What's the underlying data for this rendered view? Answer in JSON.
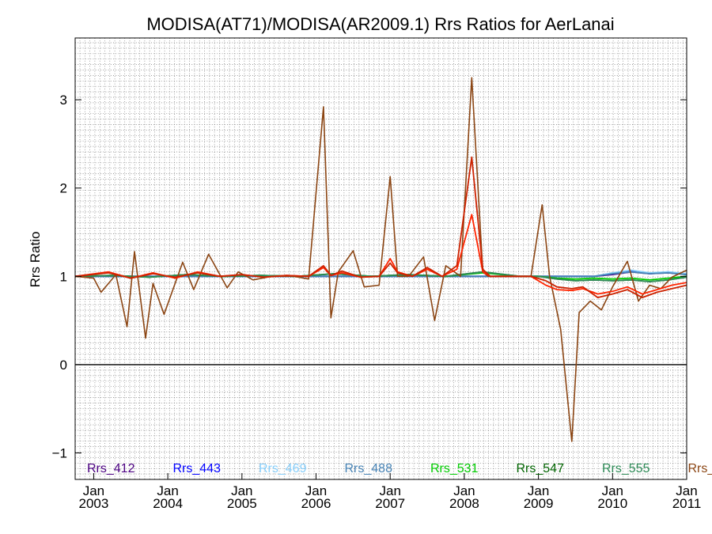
{
  "chart_data": {
    "type": "line",
    "title": "MODISA(AT71)/MODISA(AR2009.1)  Rrs Ratios for AerLanai",
    "ylabel": "Rrs Ratio",
    "xlabel": "",
    "xlim": [
      2002.75,
      2011.0
    ],
    "ylim": [
      -1.3,
      3.7
    ],
    "grid": true,
    "legend_position": "bottom",
    "reference_line": 0,
    "y_ticks": [
      {
        "value": -1,
        "label": "−1"
      },
      {
        "value": 0,
        "label": "0"
      },
      {
        "value": 1,
        "label": "1"
      },
      {
        "value": 2,
        "label": "2"
      },
      {
        "value": 3,
        "label": "3"
      }
    ],
    "x_ticks": [
      {
        "value": 2003,
        "month": "Jan",
        "year": "2003"
      },
      {
        "value": 2004,
        "month": "Jan",
        "year": "2004"
      },
      {
        "value": 2005,
        "month": "Jan",
        "year": "2005"
      },
      {
        "value": 2006,
        "month": "Jan",
        "year": "2006"
      },
      {
        "value": 2007,
        "month": "Jan",
        "year": "2007"
      },
      {
        "value": 2008,
        "month": "Jan",
        "year": "2008"
      },
      {
        "value": 2009,
        "month": "Jan",
        "year": "2009"
      },
      {
        "value": 2010,
        "month": "Jan",
        "year": "2010"
      },
      {
        "value": 2011,
        "month": "Jan",
        "year": "2011"
      }
    ],
    "series": [
      {
        "name": "Rrs_412",
        "color": "#4b0082",
        "x": [
          2002.75,
          2003.25,
          2003.75,
          2004.25,
          2004.75,
          2005.25,
          2005.75,
          2006.25,
          2006.75,
          2007.25,
          2007.75,
          2008.25,
          2008.75,
          2009.0,
          2009.25,
          2009.5,
          2009.75,
          2010.0,
          2010.25,
          2010.5,
          2010.75,
          2011.0
        ],
        "y": [
          1.0,
          1.0,
          1.0,
          1.0,
          1.0,
          1.0,
          1.0,
          1.0,
          1.0,
          1.0,
          1.0,
          1.0,
          1.0,
          1.0,
          1.0,
          1.0,
          1.0,
          1.02,
          1.05,
          1.03,
          1.04,
          1.02
        ]
      },
      {
        "name": "Rrs_443",
        "color": "#0000ff",
        "x": [
          2002.75,
          2003.25,
          2003.75,
          2004.25,
          2004.75,
          2005.25,
          2005.75,
          2006.25,
          2006.75,
          2007.25,
          2007.75,
          2008.25,
          2008.75,
          2009.0,
          2009.25,
          2009.5,
          2009.75,
          2010.0,
          2010.25,
          2010.5,
          2010.75,
          2011.0
        ],
        "y": [
          1.0,
          1.0,
          1.0,
          1.0,
          1.0,
          1.0,
          1.0,
          1.0,
          1.0,
          1.0,
          1.0,
          1.0,
          1.0,
          1.0,
          1.0,
          1.0,
          1.0,
          1.03,
          1.06,
          1.03,
          1.05,
          1.02
        ]
      },
      {
        "name": "Rrs_469",
        "color": "#87cefa",
        "x": [
          2002.75,
          2003.25,
          2003.75,
          2004.25,
          2004.75,
          2005.25,
          2005.75,
          2006.25,
          2006.75,
          2007.25,
          2007.75,
          2008.25,
          2008.75,
          2009.0,
          2009.25,
          2009.5,
          2009.75,
          2010.0,
          2010.25,
          2010.5,
          2010.75,
          2011.0
        ],
        "y": [
          1.0,
          1.0,
          1.0,
          1.0,
          1.0,
          1.0,
          1.0,
          1.0,
          1.0,
          1.0,
          1.0,
          1.0,
          1.0,
          1.0,
          1.0,
          1.0,
          1.0,
          1.04,
          1.07,
          1.04,
          1.05,
          1.03
        ]
      },
      {
        "name": "Rrs_488",
        "color": "#4682b4",
        "x": [
          2002.75,
          2003.25,
          2003.75,
          2004.25,
          2004.75,
          2005.25,
          2005.75,
          2006.25,
          2006.75,
          2007.25,
          2007.75,
          2008.25,
          2008.75,
          2009.0,
          2009.25,
          2009.5,
          2009.75,
          2010.0,
          2010.25,
          2010.5,
          2010.75,
          2011.0
        ],
        "y": [
          1.0,
          1.0,
          1.0,
          1.0,
          1.0,
          1.0,
          1.0,
          1.0,
          1.0,
          1.0,
          1.0,
          1.0,
          1.0,
          1.0,
          1.0,
          1.0,
          1.0,
          1.03,
          1.05,
          1.03,
          1.04,
          1.02
        ]
      },
      {
        "name": "Rrs_531",
        "color": "#00cc00",
        "x": [
          2002.75,
          2003.25,
          2003.75,
          2004.25,
          2004.75,
          2005.25,
          2005.75,
          2006.25,
          2006.75,
          2007.25,
          2007.75,
          2008.25,
          2008.75,
          2009.0,
          2009.25,
          2009.5,
          2009.75,
          2010.0,
          2010.25,
          2010.5,
          2010.75,
          2011.0
        ],
        "y": [
          1.0,
          1.01,
          0.99,
          1.02,
          1.0,
          1.01,
          1.0,
          1.03,
          1.0,
          1.02,
          1.0,
          1.04,
          1.0,
          1.0,
          0.98,
          0.97,
          0.98,
          0.97,
          0.98,
          0.96,
          0.98,
          1.0
        ]
      },
      {
        "name": "Rrs_547",
        "color": "#006400",
        "x": [
          2002.75,
          2003.25,
          2003.75,
          2004.25,
          2004.75,
          2005.25,
          2005.75,
          2006.25,
          2006.75,
          2007.25,
          2007.75,
          2008.25,
          2008.75,
          2009.0,
          2009.25,
          2009.5,
          2009.75,
          2010.0,
          2010.25,
          2010.5,
          2010.75,
          2011.0
        ],
        "y": [
          1.0,
          1.01,
          0.99,
          1.02,
          1.0,
          1.01,
          1.0,
          1.03,
          1.0,
          1.02,
          1.0,
          1.05,
          1.0,
          1.0,
          0.97,
          0.95,
          0.96,
          0.95,
          0.96,
          0.94,
          0.96,
          0.99
        ]
      },
      {
        "name": "Rrs_555",
        "color": "#2e8b57",
        "x": [
          2002.75,
          2003.25,
          2003.75,
          2004.25,
          2004.75,
          2005.25,
          2005.75,
          2006.25,
          2006.75,
          2007.25,
          2007.75,
          2008.25,
          2008.75,
          2009.0,
          2009.25,
          2009.5,
          2009.75,
          2010.0,
          2010.25,
          2010.5,
          2010.75,
          2011.0
        ],
        "y": [
          1.0,
          1.01,
          0.99,
          1.02,
          1.0,
          1.01,
          1.0,
          1.03,
          1.0,
          1.02,
          1.0,
          1.05,
          1.0,
          1.0,
          0.97,
          0.95,
          0.96,
          0.95,
          0.96,
          0.94,
          0.96,
          0.99
        ]
      },
      {
        "name": "Rrs_",
        "color": "#8b4513",
        "x": [
          2002.75,
          2003.0,
          2003.1,
          2003.3,
          2003.45,
          2003.55,
          2003.7,
          2003.8,
          2003.95,
          2004.2,
          2004.35,
          2004.55,
          2004.8,
          2004.95,
          2005.15,
          2005.4,
          2005.7,
          2005.9,
          2006.1,
          2006.2,
          2006.3,
          2006.5,
          2006.65,
          2006.85,
          2007.0,
          2007.1,
          2007.25,
          2007.45,
          2007.6,
          2007.75,
          2007.95,
          2008.1,
          2008.25,
          2008.32,
          2008.4,
          2008.6,
          2008.9,
          2009.05,
          2009.15,
          2009.3,
          2009.45,
          2009.55,
          2009.7,
          2009.85,
          2010.0,
          2010.2,
          2010.35,
          2010.5,
          2010.65,
          2010.8,
          2011.0
        ],
        "y": [
          1.0,
          0.98,
          0.82,
          1.02,
          0.43,
          1.28,
          0.3,
          0.92,
          0.57,
          1.16,
          0.85,
          1.25,
          0.87,
          1.05,
          0.96,
          1.0,
          1.0,
          0.97,
          2.92,
          0.53,
          1.05,
          1.29,
          0.88,
          0.9,
          2.13,
          1.0,
          1.0,
          1.22,
          0.5,
          1.12,
          1.0,
          3.25,
          1.05,
          1.0,
          1.0,
          1.0,
          1.0,
          1.81,
          1.0,
          0.4,
          -0.87,
          0.59,
          0.72,
          0.62,
          0.88,
          1.17,
          0.72,
          0.9,
          0.86,
          0.99,
          1.07
        ]
      },
      {
        "name": "",
        "color": "#ff2400",
        "x": [
          2002.75,
          2003.2,
          2003.5,
          2003.8,
          2004.1,
          2004.4,
          2004.7,
          2005.0,
          2005.3,
          2005.6,
          2005.9,
          2006.1,
          2006.2,
          2006.35,
          2006.6,
          2006.85,
          2007.0,
          2007.1,
          2007.3,
          2007.5,
          2007.7,
          2007.9,
          2008.1,
          2008.25,
          2008.35,
          2008.6,
          2008.9,
          2009.1,
          2009.25,
          2009.45,
          2009.6,
          2009.8,
          2010.0,
          2010.2,
          2010.4,
          2010.6,
          2010.8,
          2011.0
        ],
        "y": [
          1.0,
          1.05,
          0.98,
          1.04,
          0.98,
          1.05,
          1.0,
          1.02,
          0.99,
          1.01,
          1.0,
          1.1,
          1.01,
          1.04,
          0.99,
          1.0,
          1.2,
          1.05,
          1.0,
          1.08,
          1.0,
          1.08,
          1.7,
          1.05,
          1.0,
          1.0,
          1.0,
          0.9,
          0.85,
          0.84,
          0.86,
          0.8,
          0.83,
          0.88,
          0.8,
          0.85,
          0.9,
          0.93
        ]
      },
      {
        "name": "",
        "color": "#cc2200",
        "x": [
          2002.75,
          2003.2,
          2003.5,
          2003.8,
          2004.1,
          2004.4,
          2004.7,
          2005.0,
          2005.3,
          2005.6,
          2005.9,
          2006.1,
          2006.2,
          2006.35,
          2006.6,
          2006.85,
          2007.0,
          2007.1,
          2007.3,
          2007.5,
          2007.7,
          2007.9,
          2008.1,
          2008.25,
          2008.35,
          2008.6,
          2008.9,
          2009.1,
          2009.25,
          2009.45,
          2009.6,
          2009.8,
          2010.0,
          2010.2,
          2010.4,
          2010.6,
          2010.8,
          2011.0
        ],
        "y": [
          1.0,
          1.04,
          0.98,
          1.03,
          0.99,
          1.04,
          1.0,
          1.02,
          0.99,
          1.01,
          1.0,
          1.12,
          1.01,
          1.06,
          0.99,
          1.0,
          1.15,
          1.04,
          1.0,
          1.1,
          1.0,
          1.12,
          2.35,
          1.08,
          1.0,
          1.0,
          1.0,
          0.95,
          0.88,
          0.86,
          0.88,
          0.76,
          0.8,
          0.85,
          0.76,
          0.82,
          0.86,
          0.9
        ]
      }
    ]
  }
}
